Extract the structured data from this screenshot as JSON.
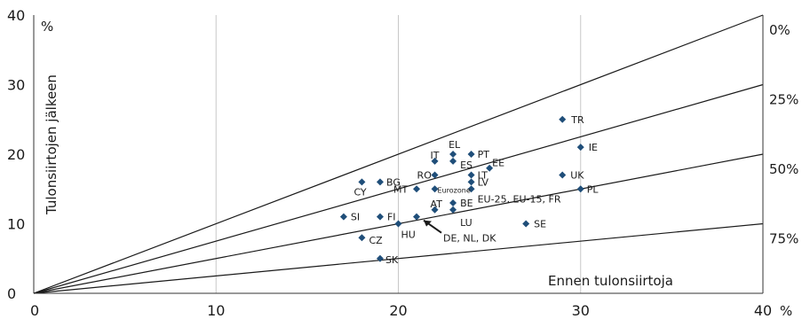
{
  "chart_data": {
    "type": "scatter",
    "xlabel": "Ennen tulonsiirtoja",
    "ylabel": "Tulonsiirtojen jälkeen",
    "x_unit": "%",
    "y_unit": "%",
    "xlim": [
      0,
      40
    ],
    "ylim": [
      0,
      40
    ],
    "xticks": [
      "0",
      "10",
      "20",
      "30",
      "40"
    ],
    "yticks": [
      "0",
      "10",
      "20",
      "30",
      "40"
    ],
    "grid": "vertical",
    "reduction_lines": [
      {
        "label": "0%",
        "slope": 1.0
      },
      {
        "label": "25%",
        "slope": 0.75
      },
      {
        "label": "50%",
        "slope": 0.5
      },
      {
        "label": "75%",
        "slope": 0.25
      }
    ],
    "points": [
      {
        "label": "TR",
        "x": 29,
        "y": 25
      },
      {
        "label": "IE",
        "x": 30,
        "y": 21
      },
      {
        "label": "EL",
        "x": 23,
        "y": 20
      },
      {
        "label": "PT",
        "x": 24,
        "y": 20
      },
      {
        "label": "IT",
        "x": 22,
        "y": 19
      },
      {
        "label": "ES",
        "x": 23,
        "y": 19
      },
      {
        "label": "EE",
        "x": 25,
        "y": 18
      },
      {
        "label": "UK",
        "x": 29,
        "y": 17
      },
      {
        "label": "RO",
        "x": 22,
        "y": 17
      },
      {
        "label": "LT",
        "x": 24,
        "y": 17
      },
      {
        "label": "CY",
        "x": 18,
        "y": 16
      },
      {
        "label": "BG",
        "x": 19,
        "y": 16
      },
      {
        "label": "LV",
        "x": 24,
        "y": 16
      },
      {
        "label": "MT",
        "x": 21,
        "y": 15
      },
      {
        "label": "Eurozone",
        "x": 22,
        "y": 15
      },
      {
        "label": "PL",
        "x": 30,
        "y": 15
      },
      {
        "label": "EU-25, EU-15, FR",
        "x": 24,
        "y": 15
      },
      {
        "label": "BE",
        "x": 23,
        "y": 13
      },
      {
        "label": "AT",
        "x": 22,
        "y": 12
      },
      {
        "label": "LU",
        "x": 23,
        "y": 12
      },
      {
        "label": "SI",
        "x": 17,
        "y": 11
      },
      {
        "label": "FI",
        "x": 19,
        "y": 11
      },
      {
        "label": "DE, NL, DK",
        "x": 21,
        "y": 11
      },
      {
        "label": "HU",
        "x": 20,
        "y": 10
      },
      {
        "label": "SE",
        "x": 27,
        "y": 10
      },
      {
        "label": "CZ",
        "x": 18,
        "y": 8
      },
      {
        "label": "SK",
        "x": 19,
        "y": 5
      }
    ],
    "marker_color": "#1f4e79"
  }
}
